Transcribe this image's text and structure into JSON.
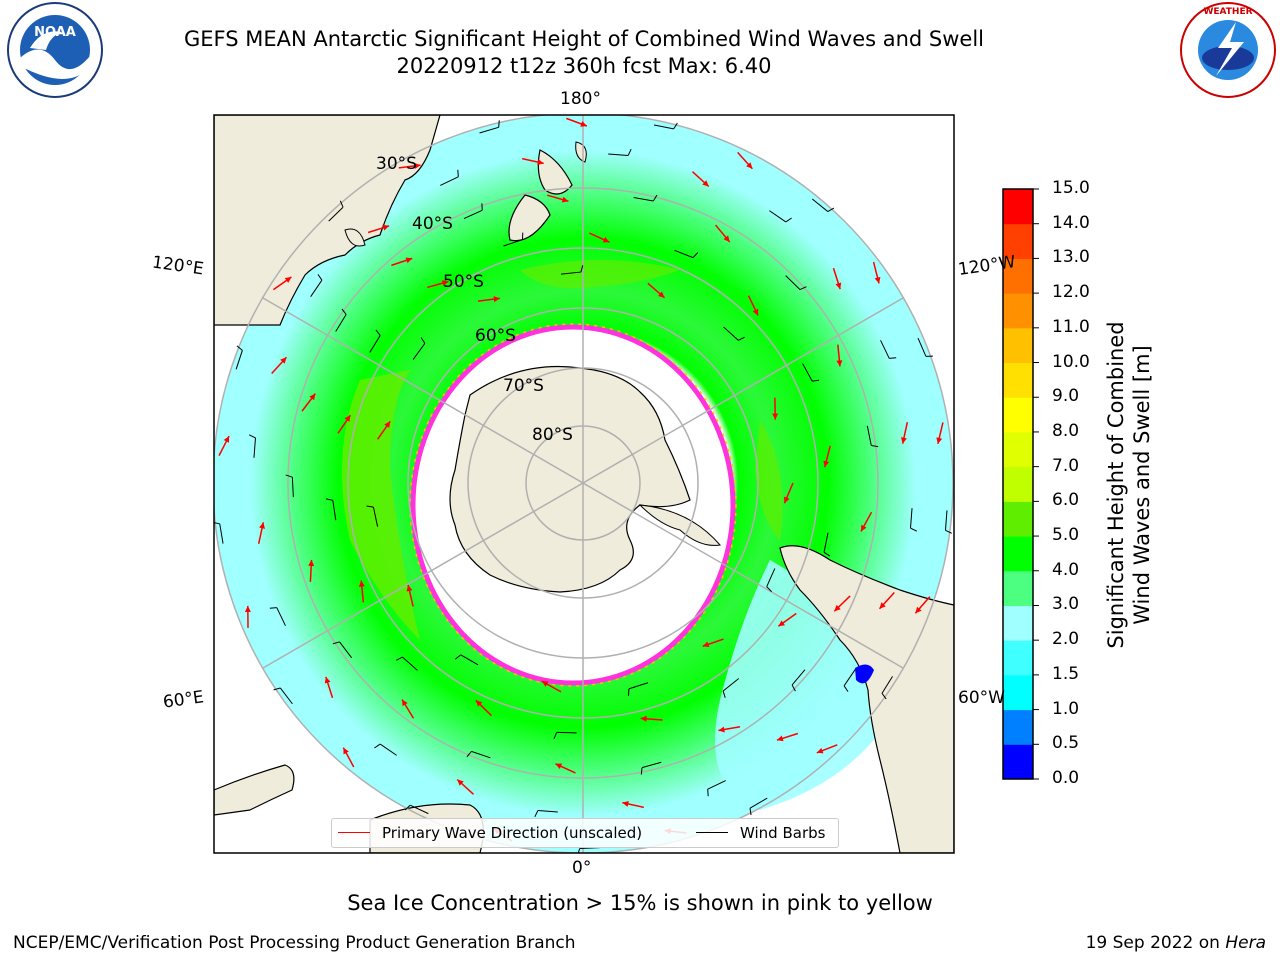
{
  "title_line1": "GEFS MEAN Antarctic Significant Height of Combined Wind Waves and Swell",
  "title_line2": "20220912 t12z 360h fcst   Max: 6.40",
  "logos": {
    "left": "noaa-logo",
    "right": "nws-logo"
  },
  "map": {
    "projection": "south-polar-stereographic",
    "longitude_labels": {
      "top": "180°",
      "bottom": "0°",
      "upper_left": "120°E",
      "upper_right": "120°W",
      "lower_left": "60°E",
      "lower_right": "60°W"
    },
    "latitude_labels": [
      "30°S",
      "40°S",
      "50°S",
      "60°S",
      "70°S",
      "80°S"
    ],
    "colors": {
      "land": "#efecdb",
      "grid": "#b0b0b0",
      "arrow": "#ff0000",
      "barb": "#000000",
      "ice": "#ff33dd"
    }
  },
  "colorbar": {
    "ticks": [
      "0.0",
      "0.5",
      "1.0",
      "1.5",
      "2.0",
      "3.0",
      "4.0",
      "5.0",
      "6.0",
      "7.0",
      "8.0",
      "9.0",
      "10.0",
      "11.0",
      "12.0",
      "13.0",
      "14.0",
      "15.0"
    ],
    "colors": [
      "#0000ff",
      "#0080ff",
      "#00ffff",
      "#40ffff",
      "#a0ffff",
      "#4dff80",
      "#00ff00",
      "#60ee00",
      "#c0ff00",
      "#e0ff00",
      "#ffff00",
      "#ffe000",
      "#ffc000",
      "#ff9000",
      "#ff7000",
      "#ff4000",
      "#ff0000"
    ],
    "label_line1": "Significant Height of Combined",
    "label_line2": "Wind Waves and Swell [m]"
  },
  "legend": {
    "item1": "Primary Wave Direction (unscaled)",
    "item2": "Wind Barbs"
  },
  "note": "Sea Ice Concentration > 15% is shown in pink to yellow",
  "credit": "NCEP/EMC/Verification Post Processing Product Generation Branch",
  "stamp": {
    "date": "19 Sep 2022 on",
    "host": "Hera"
  }
}
